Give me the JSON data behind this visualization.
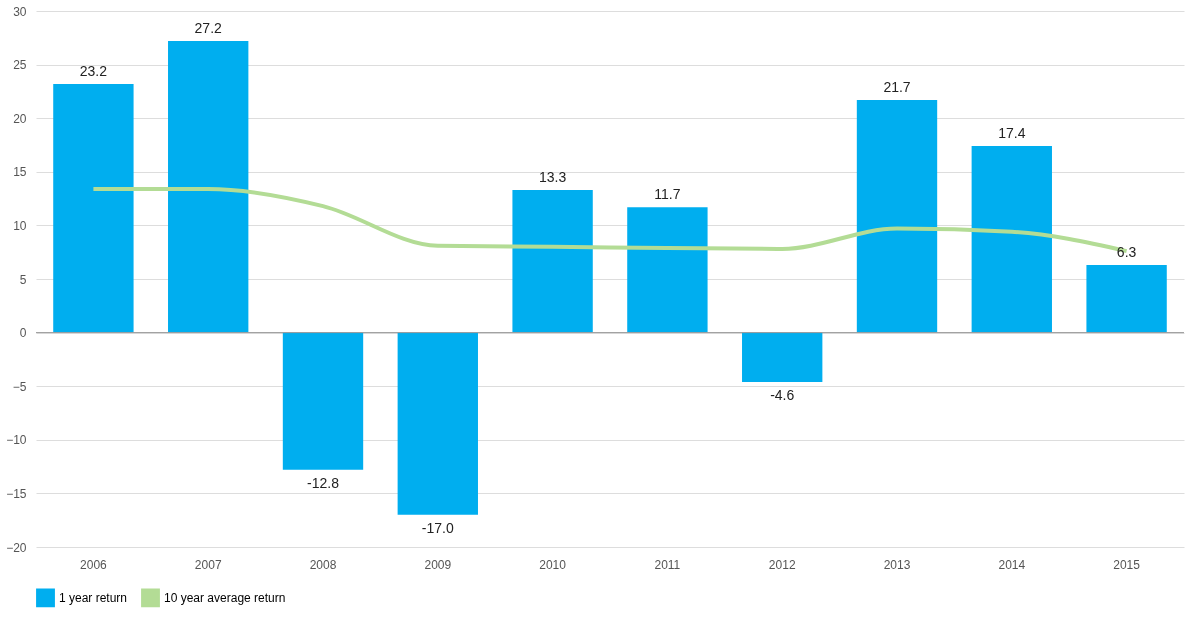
{
  "chart_data": {
    "type": "bar",
    "categories": [
      "2006",
      "2007",
      "2008",
      "2009",
      "2010",
      "2011",
      "2012",
      "2013",
      "2014",
      "2015"
    ],
    "series": [
      {
        "name": "1 year return",
        "color": "#00aeef",
        "values": [
          23.2,
          27.2,
          -12.8,
          -17.0,
          13.3,
          11.7,
          -4.6,
          21.7,
          17.4,
          6.3
        ]
      },
      {
        "name": "10 year average return",
        "type": "line",
        "color": "#b3dc95",
        "values": [
          13.4,
          13.4,
          11.8,
          8.1,
          8.0,
          7.9,
          7.8,
          9.7,
          9.4,
          7.6
        ]
      }
    ],
    "value_labels": [
      "23.2",
      "27.2",
      "-12.8",
      "-17.0",
      "13.3",
      "11.7",
      "-4.6",
      "21.7",
      "17.4",
      "6.3"
    ],
    "ylim": [
      -20,
      30
    ],
    "yticks": [
      -20,
      -15,
      -10,
      -5,
      0,
      5,
      10,
      15,
      20,
      25,
      30
    ],
    "grid": "y",
    "legend": "bottom"
  }
}
